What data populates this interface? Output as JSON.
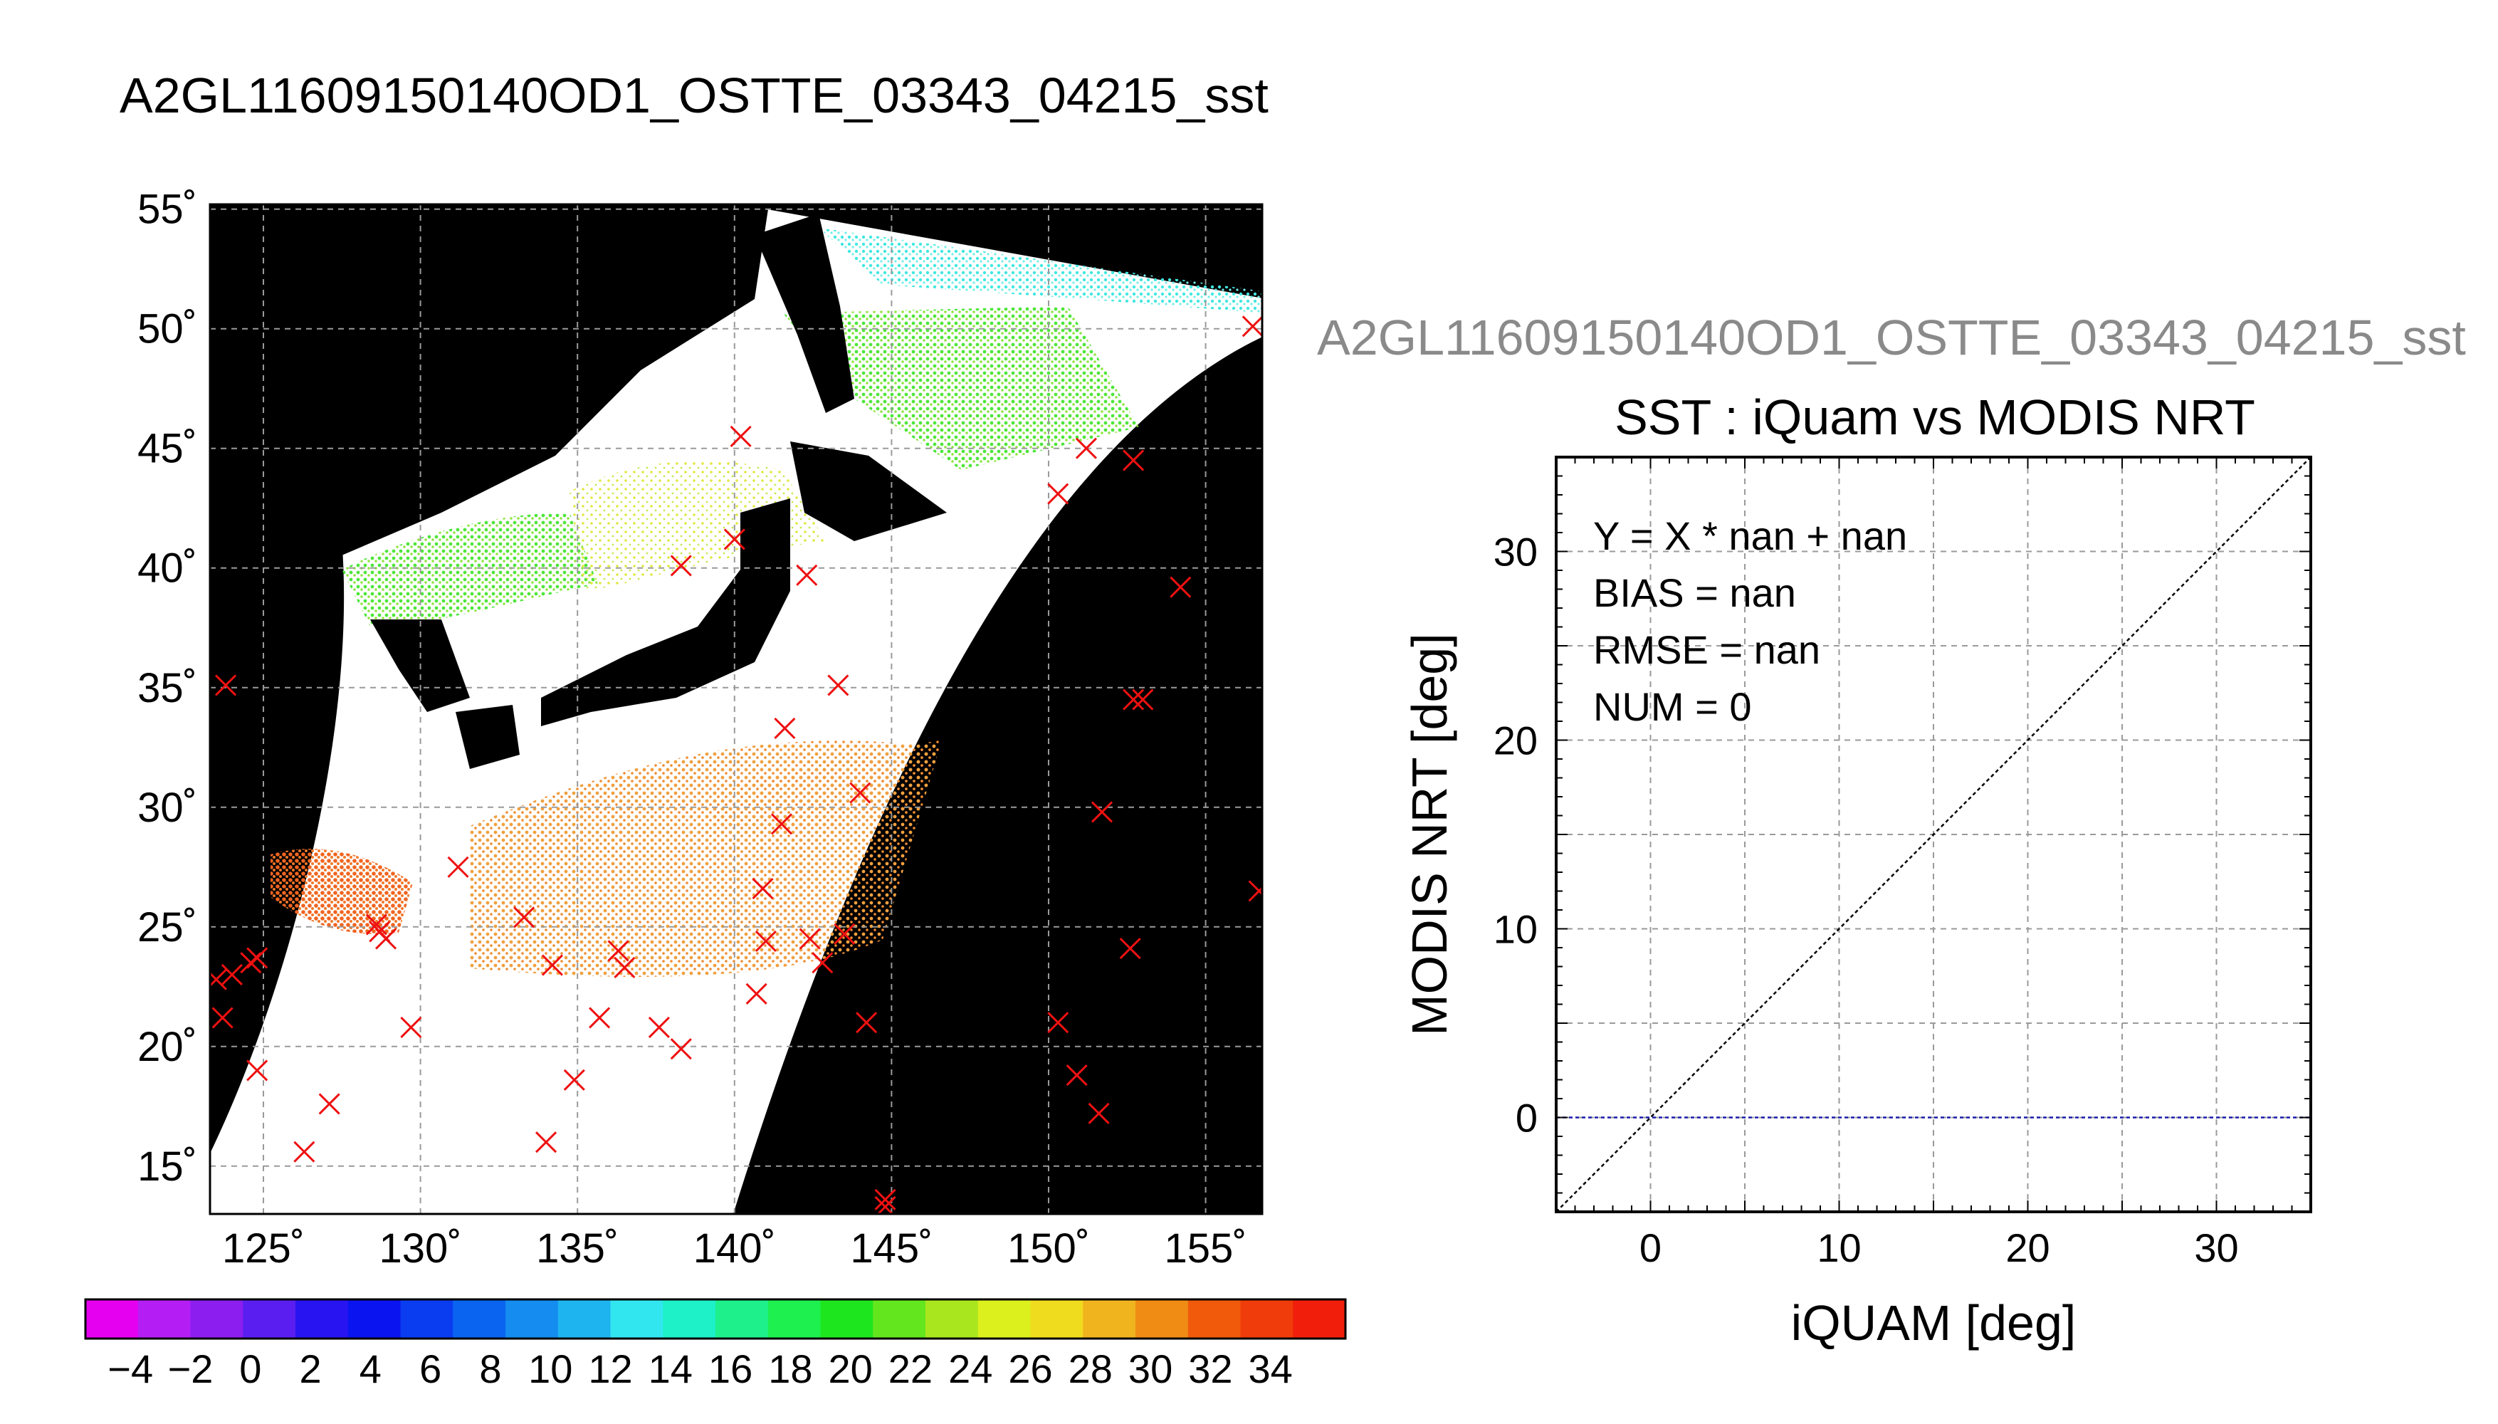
{
  "map_title": "A2GL11609150140OD1_OSTTE_03343_04215_sst",
  "scatter_suptitle": "A2GL11609150140OD1_OSTTE_03343_04215_sst",
  "colorbar": {
    "ticks": [
      "−4",
      "−2",
      "0",
      "2",
      "4",
      "6",
      "8",
      "10",
      "12",
      "14",
      "16",
      "18",
      "20",
      "22",
      "24",
      "26",
      "28",
      "30",
      "32",
      "34"
    ],
    "colors": [
      "#e600f0",
      "#b41ef5",
      "#8c1ef0",
      "#5a1ef0",
      "#2814f0",
      "#0a14f0",
      "#0a3cf0",
      "#0a64f0",
      "#148cf0",
      "#1eb4f0",
      "#32e6f0",
      "#1ef0c8",
      "#1ef08c",
      "#1ef050",
      "#1ee61e",
      "#64e61e",
      "#aae61e",
      "#dcf01e",
      "#f0dc1e",
      "#f0b41e",
      "#f08c14",
      "#f05a0a",
      "#f03c0a",
      "#f01e0a"
    ]
  },
  "chart_data": [
    {
      "type": "map",
      "title": "A2GL11609150140OD1_OSTTE_03343_04215_sst",
      "xlim": [
        123.3,
        156.8
      ],
      "ylim": [
        13.0,
        55.2
      ],
      "lon_ticks": [
        125,
        130,
        135,
        140,
        145,
        150,
        155
      ],
      "lon_tick_labels": [
        "125˚",
        "130˚",
        "135˚",
        "140˚",
        "145˚",
        "150˚",
        "155˚"
      ],
      "lat_ticks": [
        15,
        20,
        25,
        30,
        35,
        40,
        45,
        50,
        55
      ],
      "lat_tick_labels": [
        "15˚",
        "20˚",
        "25˚",
        "30˚",
        "35˚",
        "40˚",
        "45˚",
        "50˚",
        "55˚"
      ],
      "grid": true,
      "iquam_markers": [
        [
          123.8,
          35.1
        ],
        [
          123.5,
          22.8
        ],
        [
          123.7,
          21.2
        ],
        [
          124.0,
          23.0
        ],
        [
          124.6,
          23.5
        ],
        [
          124.8,
          23.7
        ],
        [
          124.8,
          19.0
        ],
        [
          126.3,
          15.6
        ],
        [
          127.1,
          17.6
        ],
        [
          128.6,
          25.1
        ],
        [
          128.7,
          24.8
        ],
        [
          128.9,
          24.5
        ],
        [
          129.7,
          20.8
        ],
        [
          131.2,
          27.5
        ],
        [
          133.3,
          25.4
        ],
        [
          134.2,
          23.4
        ],
        [
          134.9,
          18.6
        ],
        [
          134.0,
          16.0
        ],
        [
          135.7,
          21.2
        ],
        [
          136.3,
          24.0
        ],
        [
          136.5,
          23.3
        ],
        [
          137.6,
          20.8
        ],
        [
          138.3,
          19.9
        ],
        [
          138.3,
          40.1
        ],
        [
          140.2,
          45.5
        ],
        [
          140.0,
          41.2
        ],
        [
          142.3,
          39.7
        ],
        [
          143.3,
          35.1
        ],
        [
          141.6,
          33.3
        ],
        [
          141.5,
          29.3
        ],
        [
          140.9,
          26.6
        ],
        [
          141.0,
          24.4
        ],
        [
          142.4,
          24.5
        ],
        [
          142.8,
          23.5
        ],
        [
          143.5,
          24.7
        ],
        [
          140.7,
          22.2
        ],
        [
          144.0,
          30.6
        ],
        [
          144.2,
          21.0
        ],
        [
          144.8,
          13.6
        ],
        [
          144.8,
          13.3
        ],
        [
          150.3,
          21.0
        ],
        [
          150.9,
          18.8
        ],
        [
          151.6,
          17.2
        ],
        [
          151.7,
          29.8
        ],
        [
          152.6,
          24.1
        ],
        [
          153.0,
          34.5
        ],
        [
          152.7,
          34.5
        ],
        [
          152.7,
          44.5
        ],
        [
          151.2,
          45.0
        ],
        [
          150.3,
          43.1
        ],
        [
          154.2,
          39.2
        ],
        [
          156.5,
          50.1
        ],
        [
          156.7,
          26.5
        ]
      ]
    },
    {
      "type": "scatter",
      "title": "SST : iQuam vs MODIS NRT",
      "xlabel": "iQUAM [deg]",
      "ylabel": "MODIS NRT [deg]",
      "xlim": [
        -5,
        35
      ],
      "ylim": [
        -5,
        35
      ],
      "x_ticks": [
        0,
        10,
        20,
        30
      ],
      "y_ticks": [
        0,
        10,
        20,
        30
      ],
      "grid": true,
      "one_to_one_line": true,
      "zero_line": 0,
      "points": [],
      "stats": {
        "fit": "Y = X * nan + nan",
        "bias": "BIAS = nan",
        "rmse": "RMSE = nan",
        "num": "NUM = 0"
      }
    }
  ]
}
